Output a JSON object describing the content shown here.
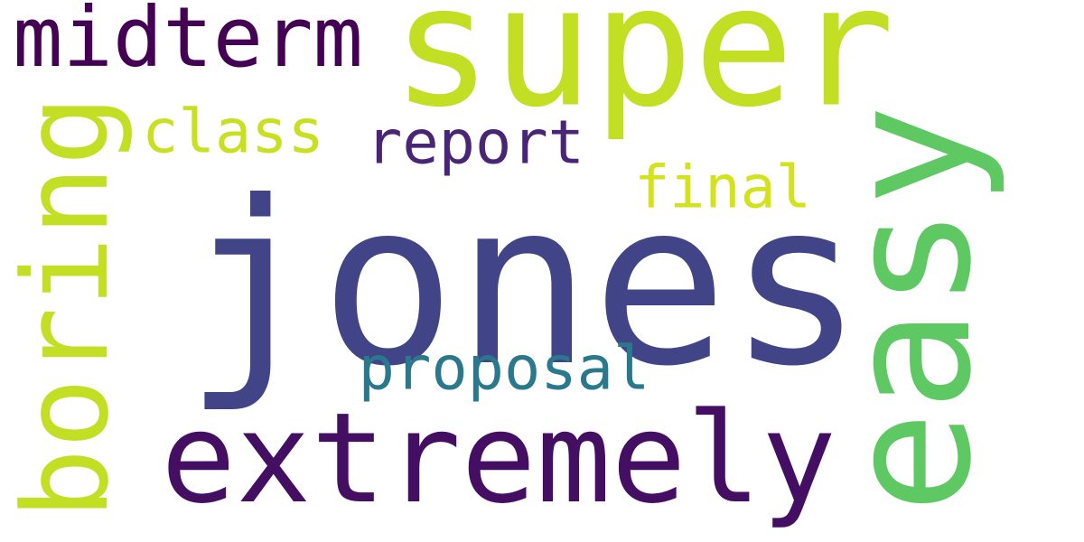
{
  "word_cloud": {
    "background": "#ffffff",
    "words": {
      "super": {
        "text": "super",
        "color": "#c2df23",
        "orientation": "horizontal"
      },
      "midterm": {
        "text": "midterm",
        "color": "#440154",
        "orientation": "horizontal"
      },
      "boring": {
        "text": "boring",
        "color": "#c2df23",
        "orientation": "vertical"
      },
      "class": {
        "text": "class",
        "color": "#c8e020",
        "orientation": "horizontal"
      },
      "report": {
        "text": "report",
        "color": "#482576",
        "orientation": "horizontal"
      },
      "final": {
        "text": "final",
        "color": "#d2e21b",
        "orientation": "horizontal"
      },
      "jones": {
        "text": "jones",
        "color": "#414487",
        "orientation": "horizontal"
      },
      "easy": {
        "text": "easy",
        "color": "#5ec962",
        "orientation": "vertical"
      },
      "proposal": {
        "text": "proposal",
        "color": "#2a788e",
        "orientation": "horizontal"
      },
      "extremely": {
        "text": "extremely",
        "color": "#440f62",
        "orientation": "horizontal"
      }
    }
  }
}
